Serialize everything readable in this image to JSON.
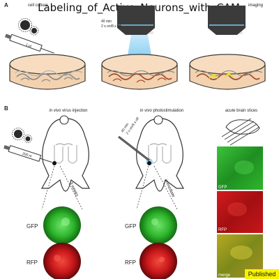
{
  "title": "Labeling_of_Active_Neurons_with_CAM",
  "panel_a": {
    "letter": "A",
    "cell_culture_label": "cell culture",
    "syringe_volume": "1 µl",
    "objective_text_line1": "40 min",
    "objective_text_line2": "2 s on/8 s off",
    "imaging_label": "imaging"
  },
  "panel_b": {
    "letter": "B",
    "col1_header_italic": "in vivo",
    "col1_header_rest": "virus injection",
    "col2_header_italic": "in vivo",
    "col2_header_rest": "photostimulation",
    "col3_header": "acute brain slices",
    "syringe_volume": "200 nl",
    "fiber_text_line1": "40 min",
    "fiber_text_line2": "2 s on/8 s off",
    "time_label_1": "3 weeks",
    "time_label_2": "immediate",
    "gfp_label": "GFP",
    "rfp_label": "RFP",
    "slice_labels": [
      "GFP",
      "RFP",
      "merge"
    ]
  },
  "badge": "Published",
  "colors": {
    "gfp": "#2fb52c",
    "rfp": "#c8161a",
    "merge": "#8e9a1d",
    "stim_blue": "#7cc8ef",
    "dish_fill": "#f3d2b0",
    "dish_stroke": "#3a3a3a",
    "badge": "#f7f200"
  }
}
